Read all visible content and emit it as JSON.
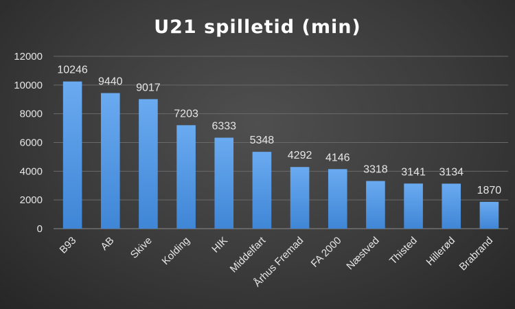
{
  "chart_data": {
    "type": "bar",
    "title": "U21 spilletid (min)",
    "xlabel": "",
    "ylabel": "",
    "categories": [
      "B93",
      "AB",
      "Skive",
      "Kolding",
      "HIK",
      "Middelfart",
      "Århus Fremad",
      "FA 2000",
      "Næstved",
      "Thisted",
      "Hillerød",
      "Brabrand"
    ],
    "values": [
      10246,
      9440,
      9017,
      7203,
      6333,
      5348,
      4292,
      4146,
      3318,
      3141,
      3134,
      1870
    ],
    "ylim": [
      0,
      12000
    ],
    "yticks": [
      0,
      2000,
      4000,
      6000,
      8000,
      10000,
      12000
    ],
    "grid": true,
    "legend": "none",
    "data_labels": true,
    "colors": {
      "bar_top": "#6aaaf0",
      "bar_bottom": "#3f86d6"
    }
  }
}
